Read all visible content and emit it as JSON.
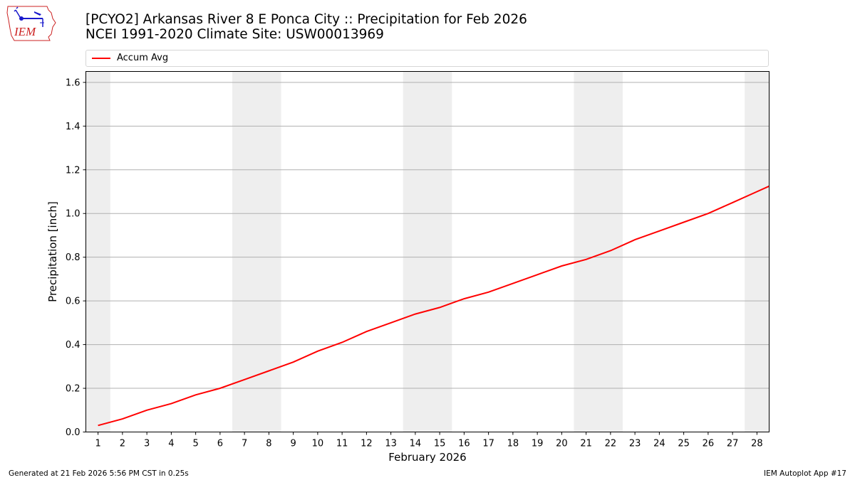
{
  "header": {
    "title_line1": "[PCYO2] Arkansas River 8 E Ponca City :: Precipitation for Feb 2026",
    "title_line2": "NCEI 1991-2020 Climate Site: USW00013969",
    "logo_text": "IEM"
  },
  "legend": {
    "items": [
      {
        "label": "Accum Avg",
        "color": "#ff0000"
      }
    ]
  },
  "footer": {
    "left": "Generated at 21 Feb 2026 5:56 PM CST in 0.25s",
    "right": "IEM Autoplot App #17"
  },
  "colors": {
    "line": "#ff0000",
    "weekend_shade": "#eeeeee",
    "grid": "#b0b0b0",
    "logo_red": "#cc2222",
    "logo_blue": "#1a1acc"
  },
  "chart_data": {
    "type": "line",
    "title": "[PCYO2] Arkansas River 8 E Ponca City :: Precipitation for Feb 2026",
    "subtitle": "NCEI 1991-2020 Climate Site: USW00013969",
    "xlabel": "February 2026",
    "ylabel": "Precipitation [inch]",
    "x": [
      1,
      2,
      3,
      4,
      5,
      6,
      7,
      8,
      9,
      10,
      11,
      12,
      13,
      14,
      15,
      16,
      17,
      18,
      19,
      20,
      21,
      22,
      23,
      24,
      25,
      26,
      27,
      28
    ],
    "series": [
      {
        "name": "Accum Avg",
        "color": "#ff0000",
        "values": [
          0.03,
          0.06,
          0.1,
          0.13,
          0.17,
          0.2,
          0.24,
          0.28,
          0.32,
          0.37,
          0.41,
          0.46,
          0.5,
          0.54,
          0.57,
          0.61,
          0.64,
          0.68,
          0.72,
          0.76,
          0.79,
          0.83,
          0.88,
          0.92,
          0.96,
          1.0,
          1.05,
          1.1
        ]
      }
    ],
    "line_end": {
      "x": 28.5,
      "y": 1.125
    },
    "xlim": [
      0.5,
      28.5
    ],
    "ylim": [
      0,
      1.65
    ],
    "yticks": [
      0.0,
      0.2,
      0.4,
      0.6,
      0.8,
      1.0,
      1.2,
      1.4,
      1.6
    ],
    "ytick_labels": [
      "0.0",
      "0.2",
      "0.4",
      "0.6",
      "0.8",
      "1.0",
      "1.2",
      "1.4",
      "1.6"
    ],
    "xtick_labels": [
      "1",
      "2",
      "3",
      "4",
      "5",
      "6",
      "7",
      "8",
      "9",
      "10",
      "11",
      "12",
      "13",
      "14",
      "15",
      "16",
      "17",
      "18",
      "19",
      "20",
      "21",
      "22",
      "23",
      "24",
      "25",
      "26",
      "27",
      "28"
    ],
    "weekend_shading": [
      [
        0.5,
        1.5
      ],
      [
        6.5,
        8.5
      ],
      [
        13.5,
        15.5
      ],
      [
        20.5,
        22.5
      ],
      [
        27.5,
        28.5
      ]
    ],
    "grid": "horizontal",
    "legend_position": "top, above axes"
  }
}
